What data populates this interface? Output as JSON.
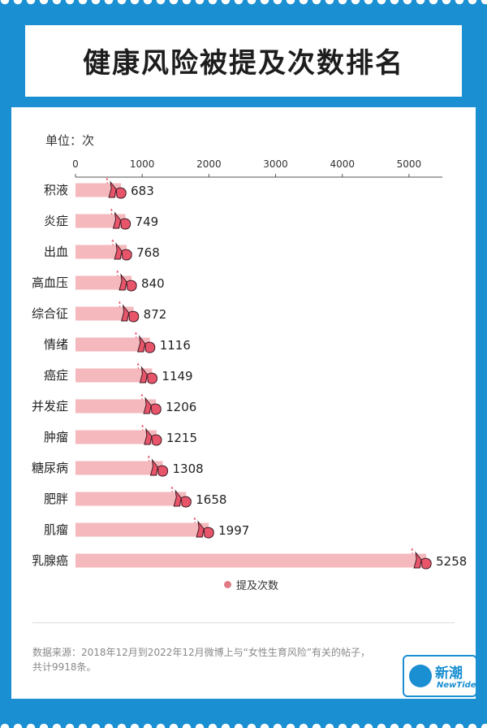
{
  "title": "健康风险被提及次数排名",
  "unit_label": "单位：次",
  "legend_label": "提及次数",
  "source": {
    "line1": "数据来源：2018年12月到2022年12月微博上与“女性生育风险”有关的帖子，",
    "line2": "共计9918条。"
  },
  "logo": {
    "cn": "新潮",
    "en": "NewTide"
  },
  "colors": {
    "background": "#1a8fd1",
    "bar": "#f4b8bd",
    "icon": "#e8556b",
    "legend": "#e07a85"
  },
  "chart_data": {
    "type": "bar",
    "orientation": "horizontal",
    "categories": [
      "积液",
      "炎症",
      "出血",
      "高血压",
      "综合征",
      "情绪",
      "癌症",
      "并发症",
      "肿瘤",
      "糖尿病",
      "肥胖",
      "肌瘤",
      "乳腺癌"
    ],
    "series": [
      {
        "name": "提及次数",
        "values": [
          683,
          749,
          768,
          840,
          872,
          1116,
          1149,
          1206,
          1215,
          1308,
          1658,
          1997,
          5258
        ]
      }
    ],
    "xticks": [
      0,
      1000,
      2000,
      3000,
      4000,
      5000
    ],
    "xlim": [
      0,
      5500
    ],
    "grid": false,
    "legend_position": "bottom"
  }
}
